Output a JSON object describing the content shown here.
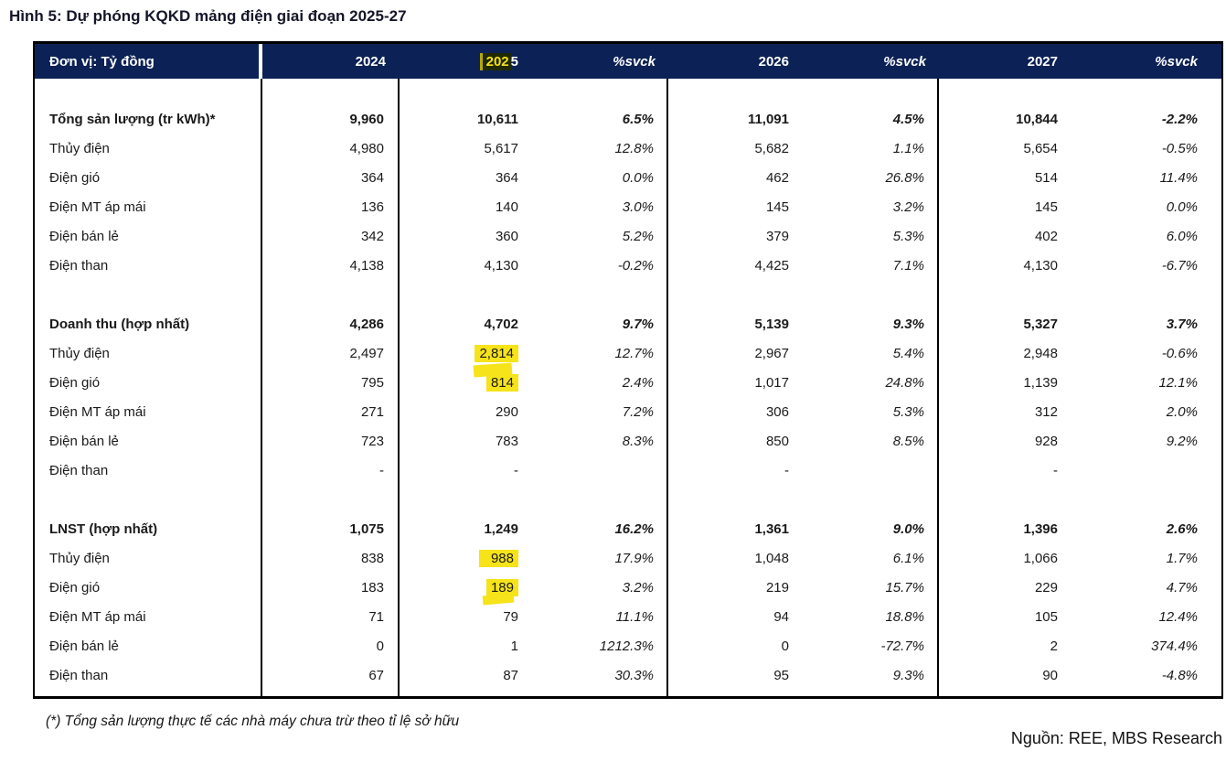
{
  "title": "Hình 5: Dự phóng KQKD mảng điện giai đoạn 2025-27",
  "table": {
    "unit_label": "Đơn vị: Tỷ đồng",
    "header": {
      "y2024": "2024",
      "y2025_hl": "202",
      "y2025_rest": "5",
      "svck": "%svck",
      "y2026": "2026",
      "y2027": "2027"
    },
    "sections": [
      {
        "rows": [
          {
            "label": "Tổng sản lượng (tr kWh)*",
            "cells": [
              "9,960",
              "10,611",
              "6.5%",
              "11,091",
              "4.5%",
              "10,844",
              "-2.2%"
            ]
          },
          {
            "label": "Thủy điện",
            "cells": [
              "4,980",
              "5,617",
              "12.8%",
              "5,682",
              "1.1%",
              "5,654",
              "-0.5%"
            ]
          },
          {
            "label": "Điện gió",
            "cells": [
              "364",
              "364",
              "0.0%",
              "462",
              "26.8%",
              "514",
              "11.4%"
            ]
          },
          {
            "label": "Điện MT áp mái",
            "cells": [
              "136",
              "140",
              "3.0%",
              "145",
              "3.2%",
              "145",
              "0.0%"
            ]
          },
          {
            "label": "Điện bán lẻ",
            "cells": [
              "342",
              "360",
              "5.2%",
              "379",
              "5.3%",
              "402",
              "6.0%"
            ]
          },
          {
            "label": "Điện than",
            "cells": [
              "4,138",
              "4,130",
              "-0.2%",
              "4,425",
              "7.1%",
              "4,130",
              "-6.7%"
            ]
          }
        ]
      },
      {
        "rows": [
          {
            "label": "Doanh thu (hợp nhất)",
            "cells": [
              "4,286",
              "4,702",
              "9.7%",
              "5,139",
              "9.3%",
              "5,327",
              "3.7%"
            ]
          },
          {
            "label": "Thủy điện",
            "cells": [
              "2,497",
              "2,814",
              "12.7%",
              "2,967",
              "5.4%",
              "2,948",
              "-0.6%"
            ]
          },
          {
            "label": "Điện gió",
            "cells": [
              "795",
              "814",
              "2.4%",
              "1,017",
              "24.8%",
              "1,139",
              "12.1%"
            ]
          },
          {
            "label": "Điện MT áp mái",
            "cells": [
              "271",
              "290",
              "7.2%",
              "306",
              "5.3%",
              "312",
              "2.0%"
            ]
          },
          {
            "label": "Điện bán lẻ",
            "cells": [
              "723",
              "783",
              "8.3%",
              "850",
              "8.5%",
              "928",
              "9.2%"
            ]
          },
          {
            "label": "Điện than",
            "cells": [
              "-",
              "-",
              "",
              "-",
              "",
              "-",
              ""
            ]
          }
        ]
      },
      {
        "rows": [
          {
            "label": "LNST (hợp nhất)",
            "cells": [
              "1,075",
              "1,249",
              "16.2%",
              "1,361",
              "9.0%",
              "1,396",
              "2.6%"
            ]
          },
          {
            "label": "Thủy điện",
            "cells": [
              "838",
              "988",
              "17.9%",
              "1,048",
              "6.1%",
              "1,066",
              "1.7%"
            ]
          },
          {
            "label": "Điện gió",
            "cells": [
              "183",
              "189",
              "3.2%",
              "219",
              "15.7%",
              "229",
              "4.7%"
            ]
          },
          {
            "label": "Điện MT áp mái",
            "cells": [
              "71",
              "79",
              "11.1%",
              "94",
              "18.8%",
              "105",
              "12.4%"
            ]
          },
          {
            "label": "Điện bán lẻ",
            "cells": [
              "0",
              "1",
              "1212.3%",
              "0",
              "-72.7%",
              "2",
              "374.4%"
            ]
          },
          {
            "label": "Điện than",
            "cells": [
              "67",
              "87",
              "30.3%",
              "95",
              "9.3%",
              "90",
              "-4.8%"
            ]
          }
        ]
      }
    ]
  },
  "footnote": "(*) Tổng sản lượng thực tế các nhà máy chưa trừ theo tỉ lệ sở hữu",
  "source": "Nguồn: REE, MBS Research",
  "colors": {
    "header_bg": "#0c2155",
    "header_text": "#ffffff",
    "highlight_yellow": "#f6e319",
    "header_2025_hl_bg": "#1f2a02",
    "header_2025_hl_text": "#f5e11a",
    "border": "#000000"
  }
}
